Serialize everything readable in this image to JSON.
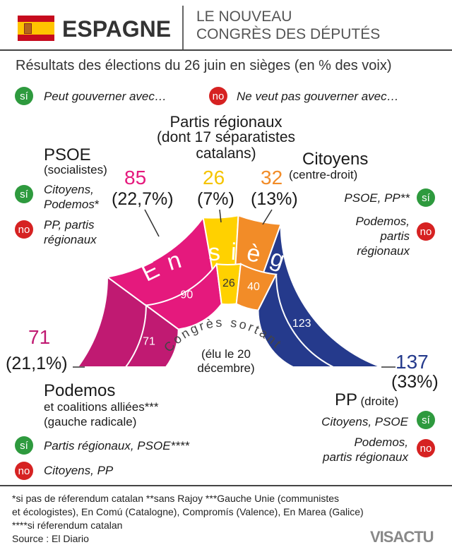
{
  "header": {
    "country": "ESPAGNE",
    "title_line1": "LE NOUVEAU",
    "title_line2": "CONGRÈS DES DÉPUTÉS",
    "flag_colors": [
      "#c60b1e",
      "#ffc400"
    ]
  },
  "subtitle": "Résultats des élections du 26 juin en sièges (en % des voix)",
  "legend": {
    "yes_badge": "sí",
    "yes_text": "Peut gouverner avec…",
    "no_badge": "no",
    "no_text": "Ne veut pas gouverner avec…"
  },
  "parties": {
    "psoe": {
      "name": "PSOE",
      "desc": "(socialistes)",
      "seats": "85",
      "pct": "(22,7%)",
      "yes": "Citoyens,\nPodemos",
      "yes_mark": "*",
      "no": "PP, partis\nrégionaux",
      "color": "#e5197d"
    },
    "regional": {
      "name": "Partis régionaux",
      "desc": "(dont 17 séparatistes\ncatalans)",
      "seats": "26",
      "pct": "(7%)",
      "color": "#ffd100"
    },
    "citoyens": {
      "name": "Citoyens",
      "desc": "(centre-droit)",
      "seats": "32",
      "pct": "(13%)",
      "yes": "PSOE, PP**",
      "no": "Podemos,\npartis\nrégionaux",
      "color": "#f28c28"
    },
    "podemos": {
      "name": "Podemos",
      "desc": "et coalitions alliées***\n(gauche radicale)",
      "seats": "71",
      "pct": "(21,1%)",
      "yes": "Partis régionaux, PSOE****",
      "no": "Citoyens, PP",
      "color": "#c01a72"
    },
    "pp": {
      "name": "PP",
      "desc": "(droite)",
      "seats": "137",
      "pct": "(33%)",
      "yes": "Citoyens, PSOE",
      "no": "Podemos,\npartis régionaux",
      "color": "#253a8c"
    }
  },
  "arc_labels": {
    "outer": "En sièges",
    "inner": "Congrès sortant",
    "inner_note": "(élu le 20\ndécembre)"
  },
  "chart_data": [
    {
      "type": "pie",
      "title": "En sièges",
      "categories": [
        "Podemos",
        "PSOE",
        "Partis régionaux",
        "Citoyens",
        "PP"
      ],
      "values": [
        71,
        85,
        26,
        32,
        137
      ],
      "percent": [
        21.1,
        22.7,
        7,
        13,
        33
      ],
      "colors": [
        "#c01a72",
        "#e5197d",
        "#ffd100",
        "#f28c28",
        "#253a8c"
      ]
    },
    {
      "type": "pie",
      "title": "Congrès sortant",
      "categories": [
        "Podemos",
        "PSOE",
        "Partis régionaux",
        "Citoyens",
        "PP"
      ],
      "values": [
        71,
        90,
        26,
        40,
        123
      ],
      "colors": [
        "#c01a72",
        "#e5197d",
        "#ffd100",
        "#f28c28",
        "#253a8c"
      ]
    }
  ],
  "footnotes": {
    "line1": "*si pas de réferendum catalan **sans Rajoy ***Gauche Unie (communistes",
    "line2": "et écologistes), En Comú (Catalogne), Compromís (Valence), En Marea (Galice)",
    "line3": "****si réferendum catalan",
    "source": "Source : El Diario"
  },
  "brand": "VISACTU"
}
